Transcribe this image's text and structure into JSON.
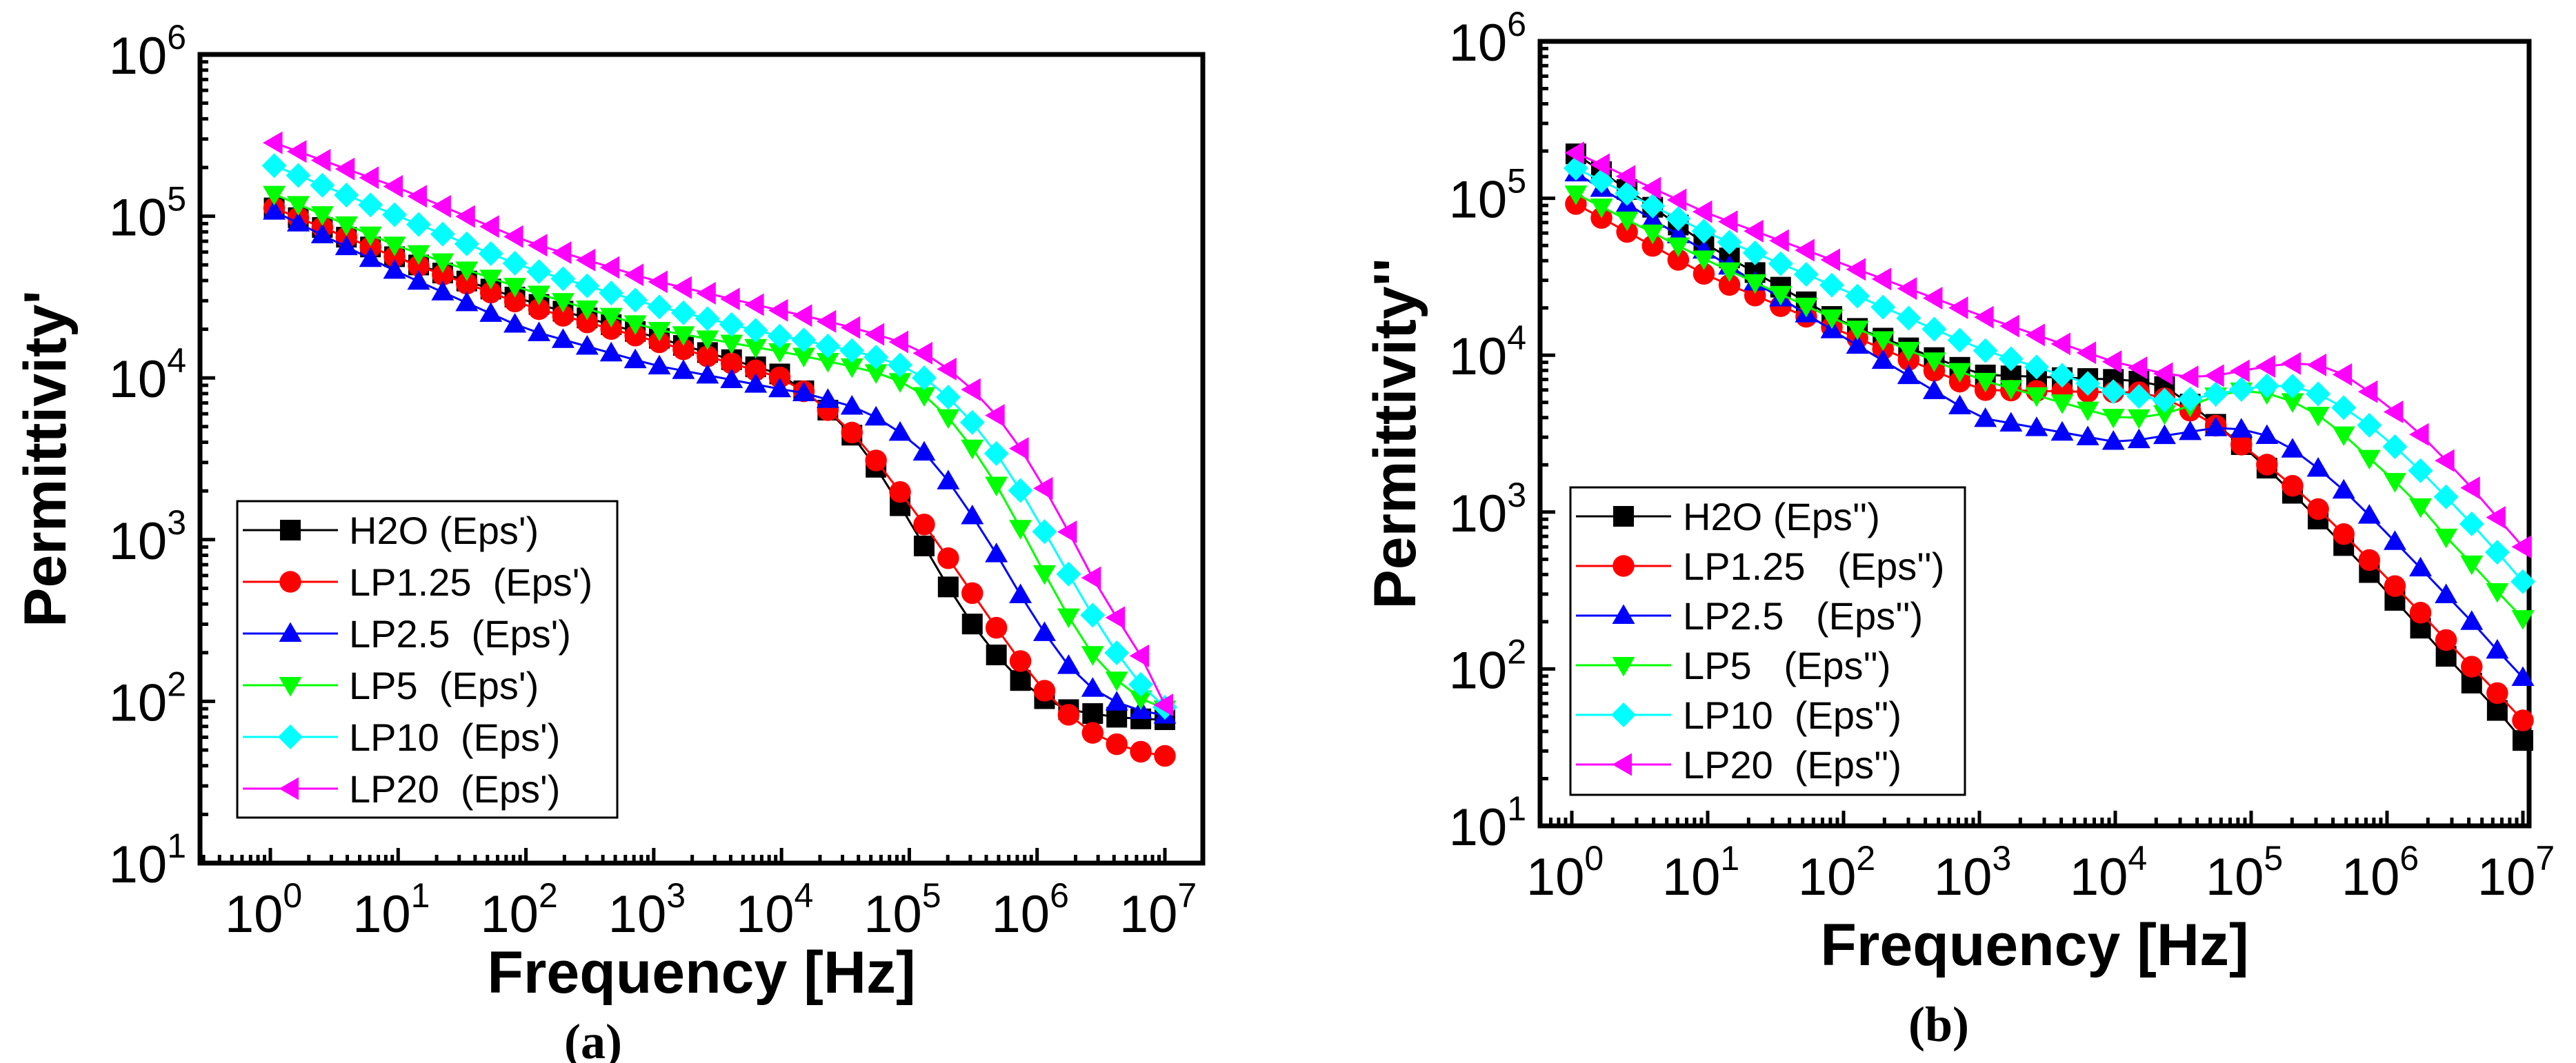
{
  "chart_data": [
    {
      "type": "scatter",
      "panel_label": "(a)",
      "xlabel": "Frequency [Hz]",
      "ylabel": "Permittivity'",
      "xscale": "log",
      "yscale": "log",
      "xlim": [
        1,
        10000000
      ],
      "ylim": [
        10,
        1000000
      ],
      "x_tick_base": "10",
      "x_tick_exponents": [
        "0",
        "1",
        "2",
        "3",
        "4",
        "5",
        "6",
        "7"
      ],
      "y_tick_base": "10",
      "y_tick_exponents": [
        "1",
        "2",
        "3",
        "4",
        "5",
        "6"
      ],
      "legend_position": "lower-left",
      "x": [
        1,
        10,
        100,
        1000,
        10000,
        16000,
        25000,
        40000,
        63000,
        100000,
        160000,
        250000,
        400000,
        630000,
        1000000,
        1600000,
        2500000,
        4000000,
        6300000,
        10000000
      ],
      "series": [
        {
          "name": "H2O (Eps')",
          "color": "#000000",
          "marker": "square",
          "values": [
            115000,
            55000,
            30000,
            18000,
            10500,
            8000,
            6000,
            4000,
            2400,
            1300,
            700,
            380,
            230,
            150,
            110,
            90,
            85,
            80,
            78,
            77
          ]
        },
        {
          "name": "LP1.25  (Eps')",
          "color": "#ff0000",
          "marker": "circle",
          "values": [
            115000,
            55000,
            28000,
            17000,
            10000,
            8000,
            6000,
            4200,
            2700,
            1650,
            1000,
            600,
            350,
            210,
            130,
            88,
            66,
            55,
            49,
            46
          ]
        },
        {
          "name": "LP2.5  (Eps')",
          "color": "#0000ff",
          "marker": "triangle-up",
          "values": [
            110000,
            45000,
            20000,
            12000,
            8500,
            8000,
            7200,
            6500,
            5400,
            4200,
            3000,
            1800,
            1050,
            560,
            310,
            180,
            125,
            100,
            88,
            82
          ]
        },
        {
          "name": "LP5  (Eps')",
          "color": "#00ff00",
          "marker": "triangle-down",
          "values": [
            140000,
            65000,
            35000,
            20000,
            14500,
            13500,
            12500,
            11500,
            10500,
            9000,
            7000,
            4700,
            2800,
            1500,
            750,
            380,
            210,
            140,
            105,
            90
          ]
        },
        {
          "name": "LP10  (Eps')",
          "color": "#00ffff",
          "marker": "diamond",
          "values": [
            210000,
            100000,
            48000,
            28000,
            18000,
            17000,
            15500,
            14500,
            13000,
            11500,
            9000,
            6500,
            4200,
            2500,
            1350,
            700,
            380,
            210,
            130,
            92
          ]
        },
        {
          "name": "LP20  (Eps')",
          "color": "#ff00ff",
          "marker": "triangle-left",
          "values": [
            290000,
            150000,
            70000,
            40000,
            26000,
            24000,
            22000,
            20000,
            18000,
            16000,
            13000,
            10000,
            7000,
            4500,
            2500,
            1300,
            650,
            350,
            200,
            95
          ]
        }
      ]
    },
    {
      "type": "scatter",
      "panel_label": "(b)",
      "xlabel": "Frequency [Hz]",
      "ylabel": "Permittivity''",
      "xscale": "log",
      "yscale": "log",
      "xlim": [
        1,
        10000000
      ],
      "ylim": [
        10,
        1000000
      ],
      "x_tick_base": "10",
      "x_tick_exponents": [
        "0",
        "1",
        "2",
        "3",
        "4",
        "5",
        "6",
        "7"
      ],
      "y_tick_base": "10",
      "y_tick_exponents": [
        "1",
        "2",
        "3",
        "4",
        "5",
        "6"
      ],
      "legend_position": "lower-left",
      "x": [
        1,
        10,
        100,
        1000,
        10000,
        16000,
        25000,
        40000,
        63000,
        100000,
        160000,
        250000,
        400000,
        630000,
        1000000,
        1600000,
        2500000,
        4000000,
        6300000,
        10000000
      ],
      "series": [
        {
          "name": "H2O (Eps'')",
          "color": "#000000",
          "marker": "square",
          "values": [
            200000,
            50000,
            16000,
            7500,
            7000,
            6800,
            6200,
            4500,
            3300,
            2400,
            1600,
            1100,
            720,
            480,
            310,
            200,
            130,
            85,
            56,
            35
          ]
        },
        {
          "name": "LP1.25   (Eps'')",
          "color": "#ff0000",
          "marker": "circle",
          "values": [
            95000,
            32000,
            14000,
            6000,
            5800,
            5800,
            5200,
            4200,
            3300,
            2400,
            1750,
            1250,
            850,
            570,
            380,
            250,
            165,
            108,
            72,
            47
          ]
        },
        {
          "name": "LP2.5   (Eps'')",
          "color": "#0000ff",
          "marker": "triangle-up",
          "values": [
            150000,
            45000,
            13000,
            4000,
            2800,
            2900,
            3100,
            3300,
            3500,
            3300,
            2900,
            2200,
            1600,
            1100,
            730,
            480,
            320,
            210,
            135,
            88
          ]
        },
        {
          "name": "LP5   (Eps'')",
          "color": "#00ff00",
          "marker": "triangle-down",
          "values": [
            110000,
            40000,
            16000,
            7000,
            4000,
            4000,
            4300,
            4900,
            5800,
            6000,
            5500,
            4700,
            3600,
            2500,
            1750,
            1200,
            750,
            490,
            320,
            210
          ]
        },
        {
          "name": "LP10  (Eps'')",
          "color": "#00ffff",
          "marker": "diamond",
          "values": [
            160000,
            60000,
            26000,
            11000,
            5800,
            5400,
            5100,
            5300,
            5800,
            6200,
            6500,
            6200,
            5100,
            4000,
            2900,
            2000,
            1350,
            880,
            570,
            360
          ]
        },
        {
          "name": "LP20  (Eps'')",
          "color": "#ff00ff",
          "marker": "triangle-left",
          "values": [
            200000,
            80000,
            38000,
            18000,
            9000,
            8200,
            7500,
            7200,
            7500,
            8200,
            8700,
            9000,
            8300,
            6500,
            4800,
            3400,
            2300,
            1500,
            950,
            600
          ]
        }
      ]
    }
  ]
}
